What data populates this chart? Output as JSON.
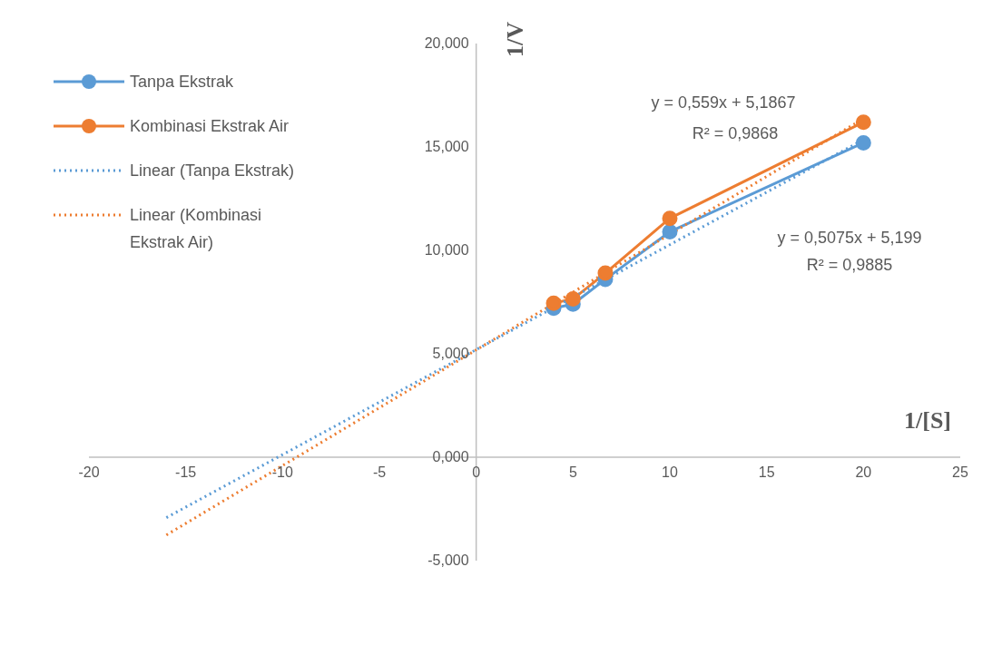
{
  "chart_data": {
    "type": "line",
    "xlabel": "1/[S]",
    "ylabel": "1/V",
    "xlim": [
      -20,
      25
    ],
    "xticks": [
      -20,
      -15,
      -10,
      -5,
      0,
      5,
      10,
      15,
      20,
      25
    ],
    "ylim": [
      -5,
      20
    ],
    "yticks": [
      {
        "value": -5,
        "label": "-5,000"
      },
      {
        "value": 0,
        "label": "0,000"
      },
      {
        "value": 5,
        "label": "5,000"
      },
      {
        "value": 10,
        "label": "10,000"
      },
      {
        "value": 15,
        "label": "15,000"
      },
      {
        "value": 20,
        "label": "20,000"
      }
    ],
    "legend": "top left",
    "marker": "circle",
    "line_style": "solid",
    "series": [
      {
        "name": "Tanpa Ekstrak",
        "color": "#5b9bd5",
        "x": [
          4,
          5,
          6.67,
          10,
          20
        ],
        "values": [
          7.2,
          7.4,
          8.6,
          10.9,
          15.2
        ]
      },
      {
        "name": "Kombinasi Ekstrak Air",
        "color": "#ed7d31",
        "x": [
          4,
          5,
          6.67,
          10,
          20
        ],
        "values": [
          7.45,
          7.65,
          8.9,
          11.55,
          16.2
        ]
      },
      {
        "name": "Linear (Tanpa Ekstrak)",
        "color": "#5b9bd5",
        "type": "line",
        "marker": "none",
        "line_style": "dotted",
        "x": [
          -16,
          20
        ],
        "values": [
          -2.92,
          15.35
        ]
      },
      {
        "name": "Linear (Kombinasi Ekstrak Air)",
        "color": "#ed7d31",
        "type": "line",
        "marker": "none",
        "line_style": "dotted",
        "x": [
          -16,
          20
        ],
        "values": [
          -3.76,
          16.37
        ]
      }
    ],
    "annotations": [
      "y = 0,559x + 5,1867",
      "R² = 0,9868",
      "y = 0,5075x + 5,199",
      "R² = 0,9885"
    ]
  }
}
